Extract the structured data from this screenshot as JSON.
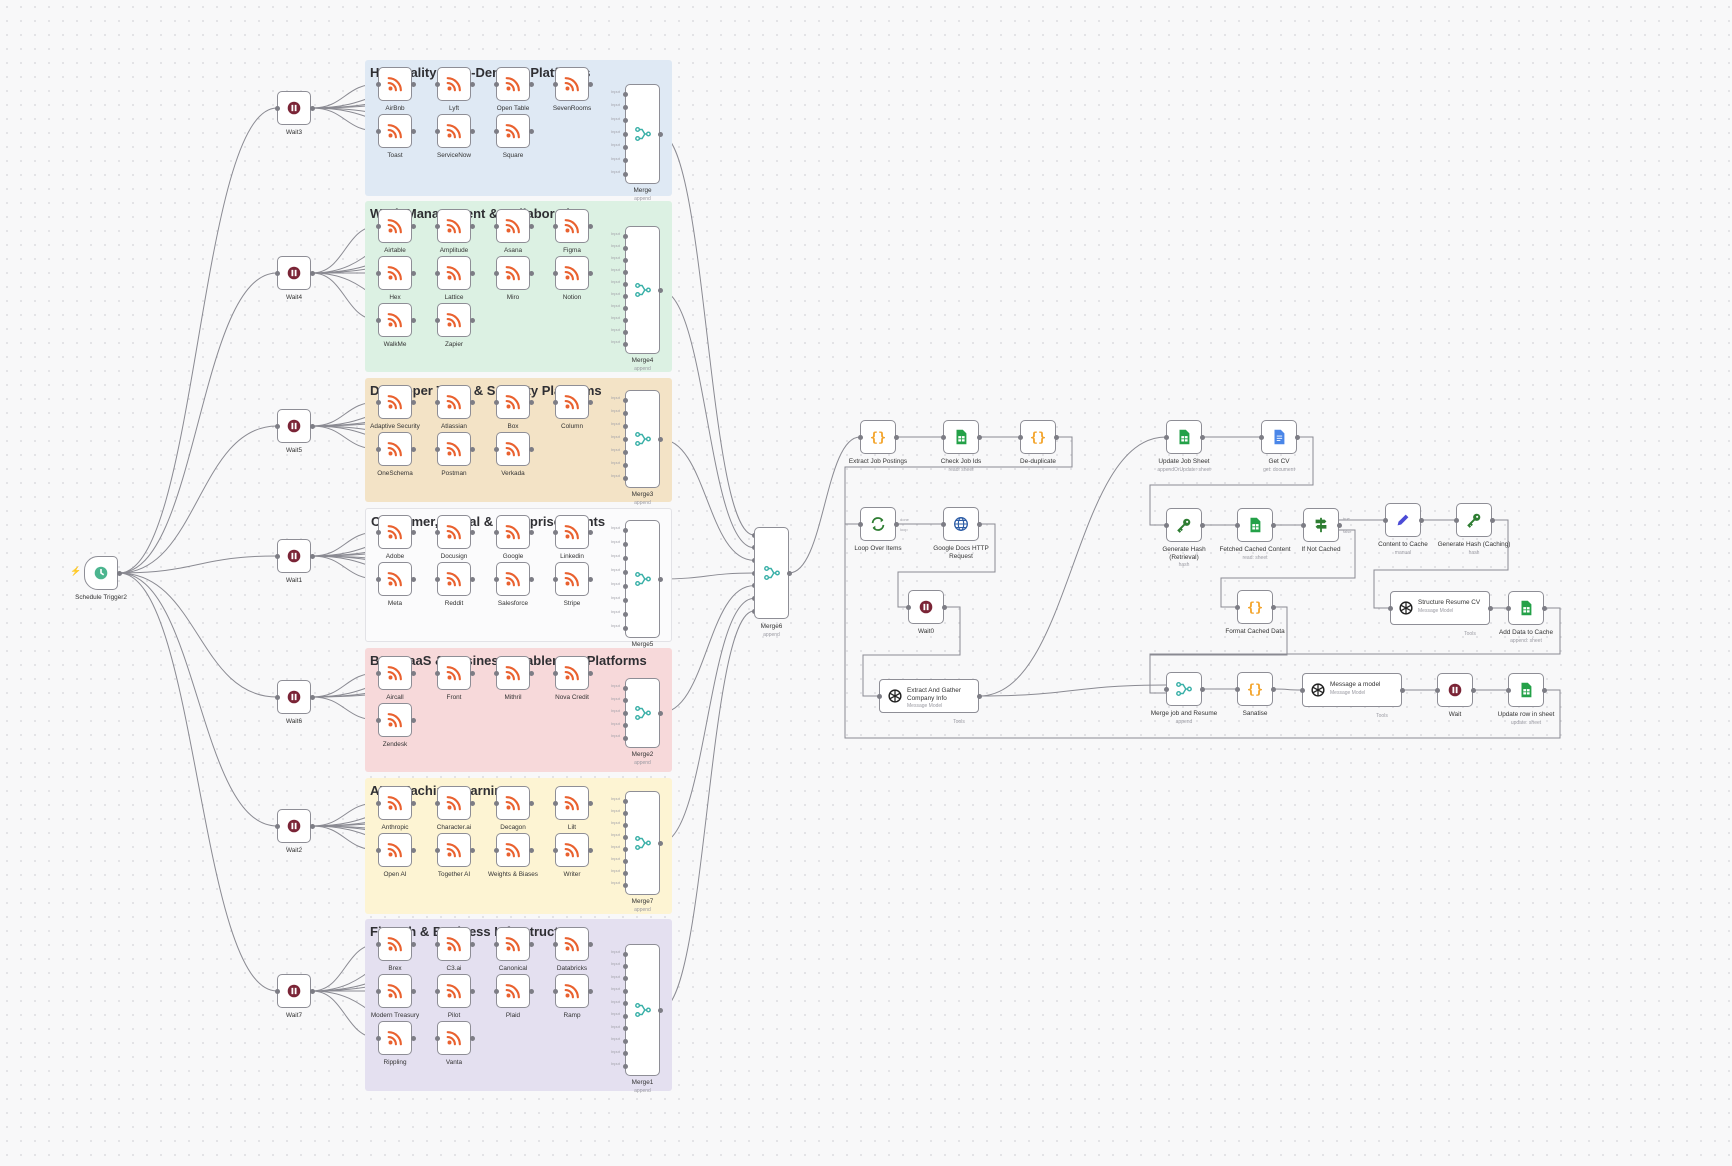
{
  "colors": {
    "rss": "#e9612f",
    "wait": "#7a2436",
    "merge": "#3ab0a8",
    "code": "#f3a42b",
    "sheets": "#24a148",
    "docs": "#4a86e8",
    "hash": "#2e7d32",
    "if": "#2e7d32",
    "edit": "#4b4bd6",
    "http": "#2d5da6",
    "trigger": "#4cb58f"
  },
  "trigger": {
    "label": "Schedule Trigger2"
  },
  "waits": [
    "Wait3",
    "Wait4",
    "Wait5",
    "Wait1",
    "Wait6",
    "Wait2",
    "Wait7"
  ],
  "groups": [
    {
      "title": "Hospitality & On-Demand Platforms",
      "feeds": [
        "AirBnb",
        "Lyft",
        "Open Table",
        "SevenRooms",
        "Toast",
        "ServiceNow",
        "Square"
      ],
      "merge": "Merge",
      "merge_sub": "append"
    },
    {
      "title": "Work Management & Collaboration",
      "feeds": [
        "Airtable",
        "Amplitude",
        "Asana",
        "Figma",
        "Hex",
        "Lattice",
        "Miro",
        "Notion",
        "WalkMe",
        "Zapier"
      ],
      "merge": "Merge4",
      "merge_sub": "append"
    },
    {
      "title": "Developer Tools & Security Platforms",
      "feeds": [
        "Adaptive Security",
        "Atlassian",
        "Box",
        "Column",
        "OneSchema",
        "Postman",
        "Verkada"
      ],
      "merge": "Merge3",
      "merge_sub": "append"
    },
    {
      "title": "Consumer, Social & Enterprise Giants",
      "feeds": [
        "Adobe",
        "Docusign",
        "Google",
        "Linkedin",
        "Meta",
        "Reddit",
        "Salesforce",
        "Stripe"
      ],
      "merge": "Merge5",
      "merge_sub": "append"
    },
    {
      "title": "B2B SaaS & Business Enablement Platforms",
      "feeds": [
        "Aircall",
        "Front",
        "Mithril",
        "Nova Credit",
        "Zendesk"
      ],
      "merge": "Merge2",
      "merge_sub": "append"
    },
    {
      "title": "AI & Machine Learning",
      "feeds": [
        "Anthropic",
        "Character.ai",
        "Decagon",
        "Lilt",
        "Open AI",
        "Together AI",
        "Weights & Biases",
        "Writer"
      ],
      "merge": "Merge7",
      "merge_sub": "append"
    },
    {
      "title": "Fintech & Business Infrastructure",
      "feeds": [
        "Brex",
        "C3.ai",
        "Canonical",
        "Databricks",
        "Modern Treasury",
        "Pilot",
        "Plaid",
        "Ramp",
        "Rippling",
        "Vanta"
      ],
      "merge": "Merge1",
      "merge_sub": "append"
    }
  ],
  "merge_all": {
    "label": "Merge6",
    "sub": "append"
  },
  "pipeline": {
    "extract": {
      "label": "Extract Job Postings"
    },
    "check": {
      "label": "Check Job Ids",
      "sub": "read: sheet"
    },
    "dedupe": {
      "label": "De-duplicate"
    },
    "loop": {
      "label": "Loop Over Items",
      "done": "done",
      "loop": "loop"
    },
    "http": {
      "label": "Google Docs HTTP Request"
    },
    "wait0": {
      "label": "Wait0"
    },
    "company": {
      "label": "Extract And Gather Company Info",
      "sub": "Message Model",
      "tools": "Tools"
    },
    "update_job": {
      "label": "Update Job Sheet",
      "sub": "appendOrUpdate: sheet"
    },
    "get_cv": {
      "label": "Get CV",
      "sub": "get: document"
    },
    "gen_hash": {
      "label": "Generate Hash (Retrieval)",
      "sub": "hash"
    },
    "fetched": {
      "label": "Fetched Cached Content",
      "sub": "read: sheet"
    },
    "ifnot": {
      "label": "If Not Cached",
      "true": "true",
      "false": "false"
    },
    "to_cache": {
      "label": "Content to Cache",
      "sub": "manual"
    },
    "gen_hash2": {
      "label": "Generate Hash (Caching)",
      "sub": "hash"
    },
    "format": {
      "label": "Format Cached Data"
    },
    "structure": {
      "label": "Structure Resume CV",
      "sub": "Message Model",
      "tools": "Tools"
    },
    "add_cache": {
      "label": "Add Data to Cache",
      "sub": "append: sheet"
    },
    "merge_resume": {
      "label": "Merge job and Resume",
      "sub": "append"
    },
    "sanatise": {
      "label": "Sanatise"
    },
    "message": {
      "label": "Message a model",
      "sub": "Message Model",
      "tools": "Tools"
    },
    "wait": {
      "label": "Wait"
    },
    "update_row": {
      "label": "Update row in sheet",
      "sub": "update: sheet"
    }
  },
  "input_label": "Input"
}
